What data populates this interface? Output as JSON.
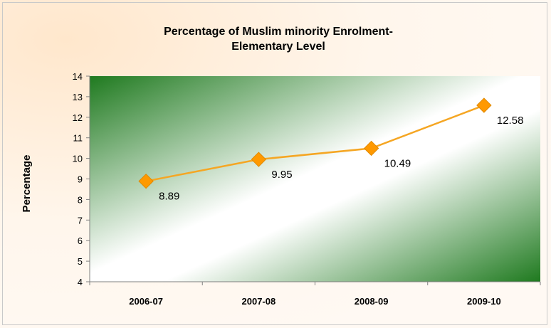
{
  "chart_data": {
    "type": "line",
    "title_lines": [
      "Percentage of Muslim minority Enrolment-",
      "Elementary Level"
    ],
    "xlabel": "",
    "ylabel": "Percentage",
    "categories": [
      "2006-07",
      "2007-08",
      "2008-09",
      "2009-10"
    ],
    "series": [
      {
        "values": [
          8.89,
          9.95,
          10.49,
          12.58
        ],
        "data_labels": [
          "8.89",
          "9.95",
          "10.49",
          "12.58"
        ]
      }
    ],
    "ylim": [
      4,
      14
    ],
    "yticks": [
      "4",
      "5",
      "6",
      "7",
      "8",
      "9",
      "10",
      "11",
      "12",
      "13",
      "14"
    ],
    "grid": false,
    "legend": "none",
    "colors": {
      "line": "#f5a623",
      "marker": "#ff9900",
      "plot_green": "#1f7a1f",
      "background": "#fff3e6"
    }
  }
}
